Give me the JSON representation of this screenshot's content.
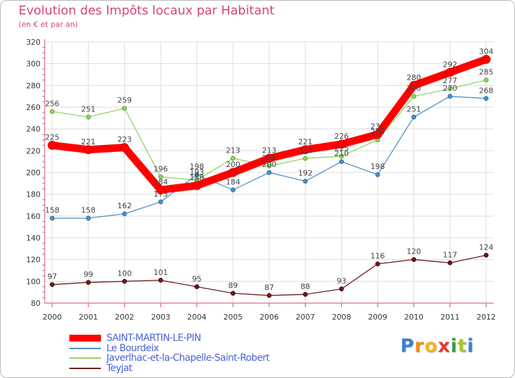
{
  "title": "Evolution des Impôts locaux par Habitant",
  "subtitle": "(en € et par an)",
  "logo": {
    "letters": [
      "P",
      "r",
      "o",
      "x",
      "i",
      "t",
      "i"
    ],
    "colors": [
      "#3b7fd4",
      "#f28c1e",
      "#f2b51e",
      "#e33b2e",
      "#3b9f3b",
      "#a4c92c",
      "#3b7fd4"
    ]
  },
  "chart_data": {
    "type": "line",
    "title": "Evolution des Impôts locaux par Habitant",
    "subtitle": "(en € et par an)",
    "x": [
      "2000",
      "2001",
      "2002",
      "2003",
      "2004",
      "2005",
      "2006",
      "2007",
      "2008",
      "2009",
      "2010",
      "2011",
      "2012"
    ],
    "y_ticks": [
      "80",
      "100",
      "120",
      "140",
      "160",
      "180",
      "200",
      "220",
      "240",
      "260",
      "280",
      "300",
      "320"
    ],
    "ylim": [
      80,
      320
    ],
    "grid": true,
    "legend_position": "bottom-left",
    "series": [
      {
        "name": "SAINT-MARTIN-LE-PIN",
        "color": "#ff0000",
        "values": [
          225,
          221,
          223,
          184,
          188,
          200,
          213,
          221,
          226,
          235,
          280,
          292,
          304
        ],
        "labels": [
          "225",
          "221",
          "223",
          "184",
          "188",
          "200",
          "213",
          "221",
          "226",
          "235",
          "280",
          "292",
          "304"
        ]
      },
      {
        "name": "Le Bourdeix",
        "color": "#4f8fc7",
        "values": [
          158,
          158,
          162,
          173,
          198,
          184,
          200,
          192,
          210,
          198,
          251,
          270,
          268
        ],
        "labels": [
          "158",
          "158",
          "162",
          "173",
          "198",
          "184",
          "200",
          "192",
          "210",
          "198",
          "251",
          "270",
          "268"
        ]
      },
      {
        "name": "Javerlhac-et-la-Chapelle-Saint-Robert",
        "color": "#8fd45f",
        "values": [
          256,
          251,
          259,
          196,
          193,
          213,
          206,
          213,
          215,
          230,
          270,
          277,
          285
        ],
        "labels": [
          "256",
          "251",
          "259",
          "196",
          "193",
          "213",
          "206",
          "213",
          "215",
          "230",
          "270",
          "277",
          "285"
        ]
      },
      {
        "name": "Teyjat",
        "color": "#6b1b1b",
        "values": [
          97,
          99,
          100,
          101,
          95,
          89,
          87,
          88,
          93,
          116,
          120,
          117,
          124
        ],
        "labels": [
          "97",
          "99",
          "100",
          "101",
          "95",
          "89",
          "87",
          "88",
          "93",
          "116",
          "120",
          "117",
          "124"
        ]
      }
    ]
  }
}
